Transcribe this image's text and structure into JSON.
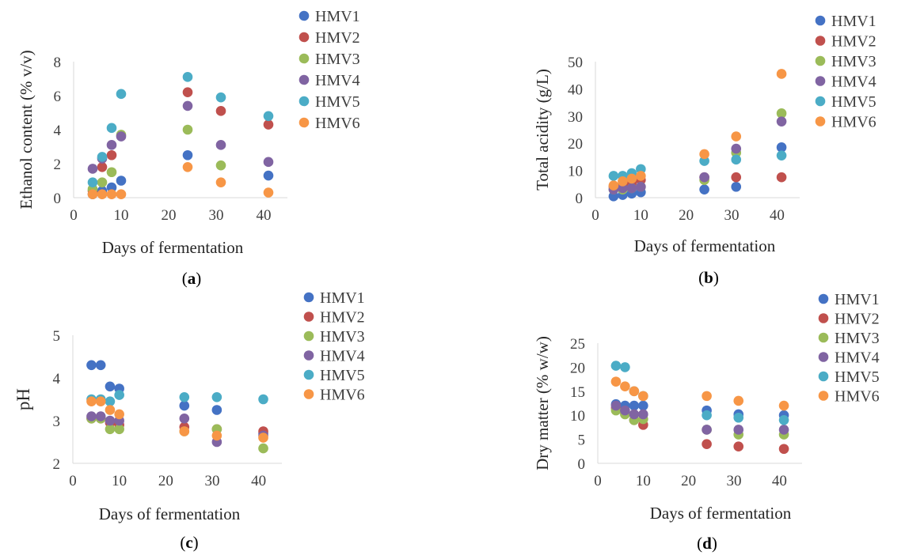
{
  "colors": {
    "HMV1": "#4472c4",
    "HMV2": "#c0504d",
    "HMV3": "#9bbb59",
    "HMV4": "#8064a2",
    "HMV5": "#4bacc6",
    "HMV6": "#f79646"
  },
  "chart_data": [
    {
      "type": "scatter",
      "caption": {
        "open": "(",
        "letter": "a",
        "close": ")"
      },
      "xlabel": "Days of fermentation",
      "ylabel": "Ethanol content (% v/v)",
      "xlim": [
        0,
        45
      ],
      "ylim": [
        0,
        8
      ],
      "xticks": [
        "0",
        "10",
        "20",
        "30",
        "40"
      ],
      "yticks": [
        "0",
        "2",
        "4",
        "6",
        "8"
      ],
      "x": [
        4,
        6,
        8,
        10,
        24,
        31,
        41
      ],
      "series": [
        {
          "name": "HMV1",
          "values": [
            0.2,
            0.4,
            0.6,
            1.0,
            2.5,
            null,
            1.3
          ]
        },
        {
          "name": "HMV2",
          "values": [
            0.4,
            1.8,
            2.5,
            null,
            6.2,
            5.1,
            4.3
          ]
        },
        {
          "name": "HMV3",
          "values": [
            0.5,
            0.9,
            1.5,
            3.7,
            4.0,
            1.9,
            null
          ]
        },
        {
          "name": "HMV4",
          "values": [
            1.7,
            2.3,
            3.1,
            3.6,
            5.4,
            3.1,
            2.1
          ]
        },
        {
          "name": "HMV5",
          "values": [
            0.9,
            2.4,
            4.1,
            6.1,
            7.1,
            5.9,
            4.8
          ]
        },
        {
          "name": "HMV6",
          "values": [
            0.2,
            0.2,
            0.2,
            0.2,
            1.8,
            0.9,
            0.3
          ]
        }
      ]
    },
    {
      "type": "scatter",
      "caption": {
        "open": "(",
        "letter": "b",
        "close": ")"
      },
      "xlabel": "Days of fermentation",
      "ylabel": "Total acidity (g/L)",
      "xlim": [
        0,
        45
      ],
      "ylim": [
        0,
        50
      ],
      "xticks": [
        "0",
        "10",
        "20",
        "30",
        "40"
      ],
      "yticks": [
        "0",
        "10",
        "20",
        "30",
        "40",
        "50"
      ],
      "x": [
        4,
        6,
        8,
        10,
        24,
        31,
        41
      ],
      "series": [
        {
          "name": "HMV1",
          "values": [
            0.5,
            1.0,
            1.5,
            2.0,
            3.0,
            4.0,
            18.5
          ]
        },
        {
          "name": "HMV2",
          "values": [
            4.0,
            4.5,
            5.5,
            6.5,
            7.5,
            7.5,
            7.5
          ]
        },
        {
          "name": "HMV3",
          "values": [
            3.0,
            3.0,
            3.5,
            4.0,
            6.5,
            16.5,
            31.0
          ]
        },
        {
          "name": "HMV4",
          "values": [
            3.0,
            3.5,
            3.5,
            4.0,
            7.5,
            18.0,
            28.0
          ]
        },
        {
          "name": "HMV5",
          "values": [
            8.0,
            8.0,
            9.0,
            10.5,
            13.5,
            14.0,
            15.5
          ]
        },
        {
          "name": "HMV6",
          "values": [
            4.5,
            6.0,
            7.0,
            8.0,
            16.0,
            22.5,
            45.5
          ]
        }
      ]
    },
    {
      "type": "scatter",
      "caption": {
        "open": "(",
        "letter": "c",
        "close": ")"
      },
      "xlabel": "Days of fermentation",
      "ylabel": "pH",
      "xlim": [
        0,
        45
      ],
      "ylim": [
        2,
        5
      ],
      "xticks": [
        "0",
        "10",
        "20",
        "30",
        "40"
      ],
      "yticks": [
        "2",
        "3",
        "4",
        "5"
      ],
      "x": [
        4,
        6,
        8,
        10,
        24,
        31,
        41
      ],
      "series": [
        {
          "name": "HMV1",
          "values": [
            4.3,
            4.3,
            3.8,
            3.75,
            3.35,
            3.25,
            2.7
          ]
        },
        {
          "name": "HMV2",
          "values": [
            3.05,
            3.05,
            2.95,
            2.9,
            2.85,
            2.8,
            2.75
          ]
        },
        {
          "name": "HMV3",
          "values": [
            3.05,
            3.05,
            2.8,
            2.8,
            2.75,
            2.8,
            2.35
          ]
        },
        {
          "name": "HMV4",
          "values": [
            3.1,
            3.1,
            3.0,
            3.0,
            3.05,
            2.5,
            2.65
          ]
        },
        {
          "name": "HMV5",
          "values": [
            3.5,
            3.5,
            3.45,
            3.6,
            3.55,
            3.55,
            3.5
          ]
        },
        {
          "name": "HMV6",
          "values": [
            3.45,
            3.45,
            3.25,
            3.15,
            2.75,
            2.65,
            2.6
          ]
        }
      ]
    },
    {
      "type": "scatter",
      "caption": {
        "open": "(",
        "letter": "d",
        "close": ")"
      },
      "xlabel": "Days of fermentation",
      "ylabel": "Dry matter (% w/w)",
      "xlim": [
        0,
        45
      ],
      "ylim": [
        0,
        25
      ],
      "xticks": [
        "0",
        "10",
        "20",
        "30",
        "40"
      ],
      "yticks": [
        "0",
        "5",
        "10",
        "15",
        "20",
        "25"
      ],
      "x": [
        4,
        6,
        8,
        10,
        24,
        31,
        41
      ],
      "series": [
        {
          "name": "HMV1",
          "values": [
            12.3,
            12.0,
            12.0,
            12.0,
            11.0,
            10.2,
            10.0
          ]
        },
        {
          "name": "HMV2",
          "values": [
            11.5,
            10.5,
            9.0,
            8.0,
            4.0,
            3.5,
            3.0
          ]
        },
        {
          "name": "HMV3",
          "values": [
            11.0,
            10.2,
            9.0,
            9.2,
            7.0,
            6.0,
            6.0
          ]
        },
        {
          "name": "HMV4",
          "values": [
            12.0,
            11.0,
            10.2,
            10.2,
            7.0,
            7.0,
            7.0
          ]
        },
        {
          "name": "HMV5",
          "values": [
            20.3,
            20.0,
            15.0,
            14.0,
            10.0,
            9.5,
            9.0
          ]
        },
        {
          "name": "HMV6",
          "values": [
            17.0,
            16.0,
            15.0,
            14.0,
            14.0,
            13.0,
            12.0
          ]
        }
      ]
    }
  ]
}
